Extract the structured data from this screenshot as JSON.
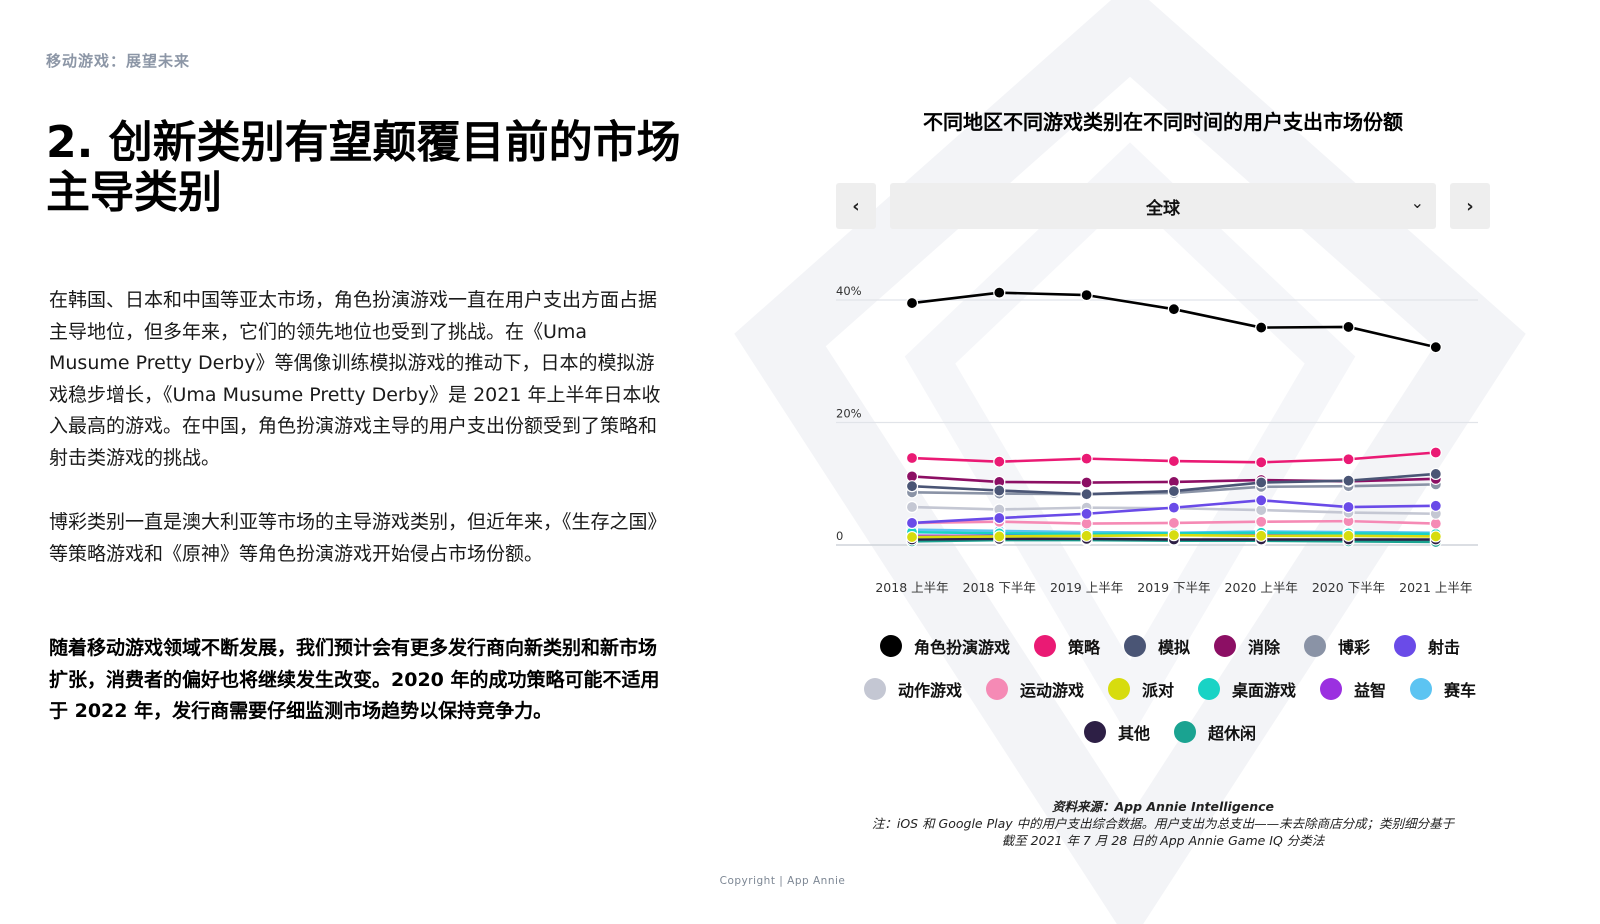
{
  "header": {
    "section_label": "移动游戏：展望未来"
  },
  "main": {
    "title": "2. 创新类别有望颠覆目前的市场主导类别",
    "paragraphs": [
      "在韩国、日本和中国等亚太市场，角色扮演游戏一直在用户支出方面占据主导地位，但多年来，它们的领先地位也受到了挑战。在《Uma Musume Pretty Derby》等偶像训练模拟游戏的推动下，日本的模拟游戏稳步增长，《Uma Musume Pretty Derby》是 2021 年上半年日本收入最高的游戏。在中国，角色扮演游戏主导的用户支出份额受到了策略和射击类游戏的挑战。",
      "博彩类别一直是澳大利亚等市场的主导游戏类别，但近年来，《生存之国》等策略游戏和《原神》等角色扮演游戏开始侵占市场份额。",
      "随着移动游戏领域不断发展，我们预计会有更多发行商向新类别和新市场扩张，消费者的偏好也将继续发生改变。2020 年的成功策略可能不适用于 2022 年，发行商需要仔细监测市场趋势以保持竞争力。"
    ]
  },
  "chart_controls": {
    "prev_label": "‹",
    "next_label": "›",
    "region_value": "全球",
    "dropdown_icon": "chevron-down-icon"
  },
  "chart_data": {
    "type": "line",
    "title": "不同地区不同游戏类别在不同时间的用户支出市场份额",
    "x": [
      "2018 上半年",
      "2018 下半年",
      "2019 上半年",
      "2019 下半年",
      "2020 上半年",
      "2020 下半年",
      "2021 上半年"
    ],
    "y_ticks": [
      "0",
      "20%",
      "40%"
    ],
    "ylim": [
      0,
      40
    ],
    "grid": true,
    "legend_position": "bottom",
    "series": [
      {
        "name": "角色扮演游戏",
        "color": "#000000",
        "values": [
          39.5,
          41.2,
          40.8,
          38.5,
          35.5,
          35.6,
          32.3
        ]
      },
      {
        "name": "策略",
        "color": "#ea1a74",
        "values": [
          14.2,
          13.6,
          14.1,
          13.7,
          13.5,
          14.0,
          15.1
        ]
      },
      {
        "name": "模拟",
        "color": "#4a5575",
        "values": [
          9.6,
          8.9,
          8.3,
          8.8,
          10.2,
          10.5,
          11.6
        ]
      },
      {
        "name": "消除",
        "color": "#8c0f64",
        "values": [
          11.2,
          10.3,
          10.2,
          10.3,
          10.6,
          10.4,
          10.8
        ]
      },
      {
        "name": "博彩",
        "color": "#8a93a6",
        "values": [
          8.6,
          8.4,
          8.3,
          8.5,
          9.5,
          9.6,
          9.9
        ]
      },
      {
        "name": "射击",
        "color": "#6a4be8",
        "values": [
          3.6,
          4.4,
          5.1,
          6.1,
          7.3,
          6.2,
          6.4
        ]
      },
      {
        "name": "动作游戏",
        "color": "#c4c7d3",
        "values": [
          6.2,
          5.8,
          6.1,
          6.0,
          5.7,
          5.3,
          5.1
        ]
      },
      {
        "name": "运动游戏",
        "color": "#f58ab5",
        "values": [
          3.6,
          3.8,
          3.5,
          3.6,
          3.8,
          3.9,
          3.5
        ]
      },
      {
        "name": "派对",
        "color": "#d7dc0e",
        "values": [
          1.3,
          1.4,
          1.5,
          1.6,
          1.5,
          1.5,
          1.4
        ]
      },
      {
        "name": "桌面游戏",
        "color": "#19d3c5",
        "values": [
          2.1,
          1.9,
          1.8,
          1.9,
          2.0,
          1.9,
          1.8
        ]
      },
      {
        "name": "益智",
        "color": "#9b30e0",
        "values": [
          1.5,
          1.5,
          1.6,
          1.7,
          1.7,
          1.6,
          1.6
        ]
      },
      {
        "name": "赛车",
        "color": "#5cc4f2",
        "values": [
          2.5,
          2.3,
          2.1,
          2.0,
          2.2,
          2.1,
          2.0
        ]
      },
      {
        "name": "其他",
        "color": "#2d1f45",
        "values": [
          0.9,
          1.0,
          1.0,
          0.9,
          0.9,
          0.9,
          0.9
        ]
      },
      {
        "name": "超休闲",
        "color": "#1aa391",
        "values": [
          0.6,
          0.8,
          0.8,
          0.7,
          0.7,
          0.6,
          0.5
        ]
      }
    ]
  },
  "source": {
    "line1": "资料来源：App Annie Intelligence",
    "line2": "注：iOS 和 Google Play 中的用户支出综合数据。用户支出为总支出——未去除商店分成；类别细分基于",
    "line3": "截至 2021 年 7 月 28 日的 App Annie Game IQ 分类法"
  },
  "footer": {
    "copyright": "Copyright | App Annie"
  }
}
